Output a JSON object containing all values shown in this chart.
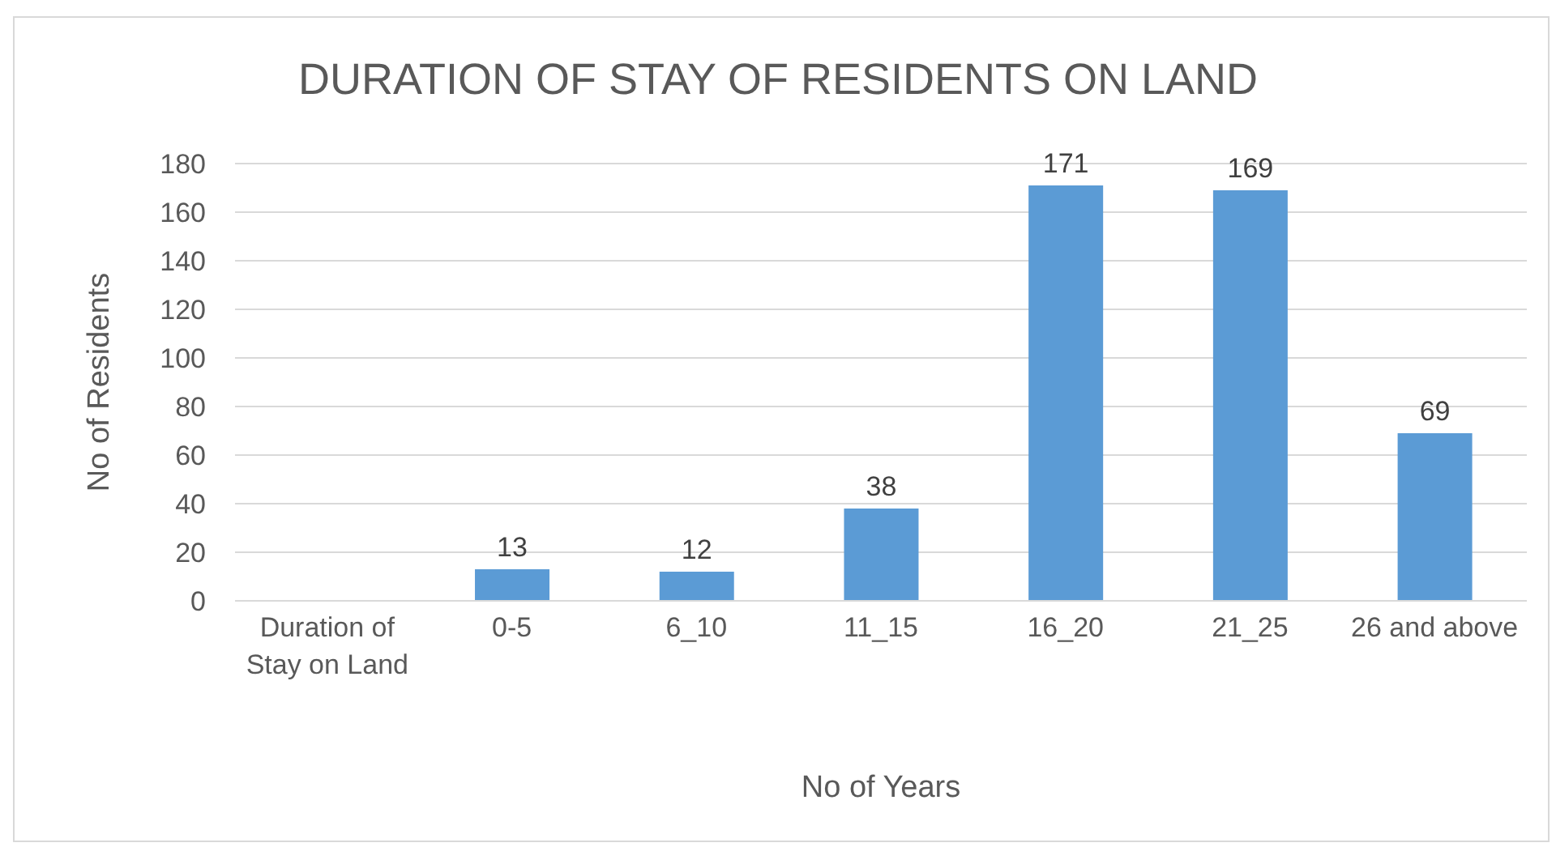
{
  "chart_data": {
    "type": "bar",
    "title": "DURATION OF STAY OF RESIDENTS ON LAND",
    "xlabel": "No of Years",
    "ylabel": "No of Residents",
    "categories": [
      "Duration of Stay on Land",
      "0-5",
      "6_10",
      "11_15",
      "16_20",
      "21_25",
      "26 and above"
    ],
    "values": [
      null,
      13,
      12,
      38,
      171,
      169,
      69
    ],
    "color": "#5b9bd5",
    "ylim": [
      0,
      180
    ],
    "yticks": [
      0,
      20,
      40,
      60,
      80,
      100,
      120,
      140,
      160,
      180
    ],
    "grid": "y",
    "data_labels": true,
    "legend": false
  }
}
